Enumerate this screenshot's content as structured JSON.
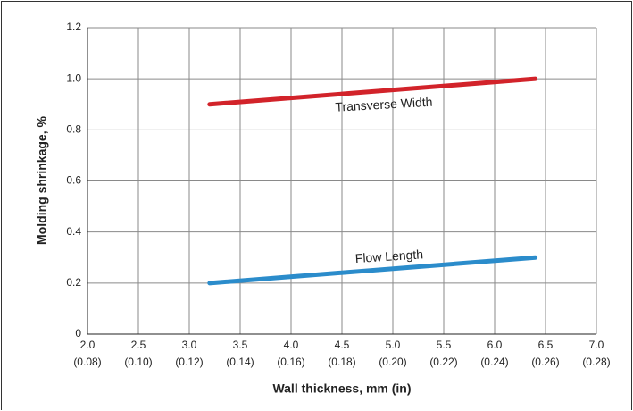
{
  "chart_data": {
    "type": "line",
    "xlabel": "Wall thickness, mm (in)",
    "ylabel": "Molding shrinkage, %",
    "x": [
      3.2,
      6.4
    ],
    "series": [
      {
        "name": "Transverse Width",
        "color": "#d2232a",
        "values": [
          0.9,
          1.0
        ]
      },
      {
        "name": "Flow Length",
        "color": "#2b8ccb",
        "values": [
          0.2,
          0.3
        ]
      }
    ],
    "xlim": [
      2,
      7
    ],
    "xticks": [
      {
        "value": 2,
        "label": "2.0"
      },
      2.5,
      {
        "value": 3,
        "label": "3.0"
      },
      3.5,
      {
        "value": 4,
        "label": "4.0"
      },
      4.5,
      {
        "value": 5,
        "label": "5.0"
      },
      5.5,
      {
        "value": 6,
        "label": "6.0"
      },
      6.5,
      {
        "value": 7,
        "label": "7.0"
      }
    ],
    "xtick_sublabels": [
      "(0.08)",
      "(0.10)",
      "(0.12)",
      "(0.14)",
      "(0.16)",
      "(0.18)",
      "(0.20)",
      "(0.22)",
      "(0.24)",
      "(0.26)",
      "(0.28)"
    ],
    "ylim": [
      0,
      1.2
    ],
    "yticks": [
      0,
      0.2,
      0.4,
      0.6,
      0.8,
      {
        "value": 1,
        "label": "1.0"
      },
      1.2
    ],
    "grid": true
  }
}
